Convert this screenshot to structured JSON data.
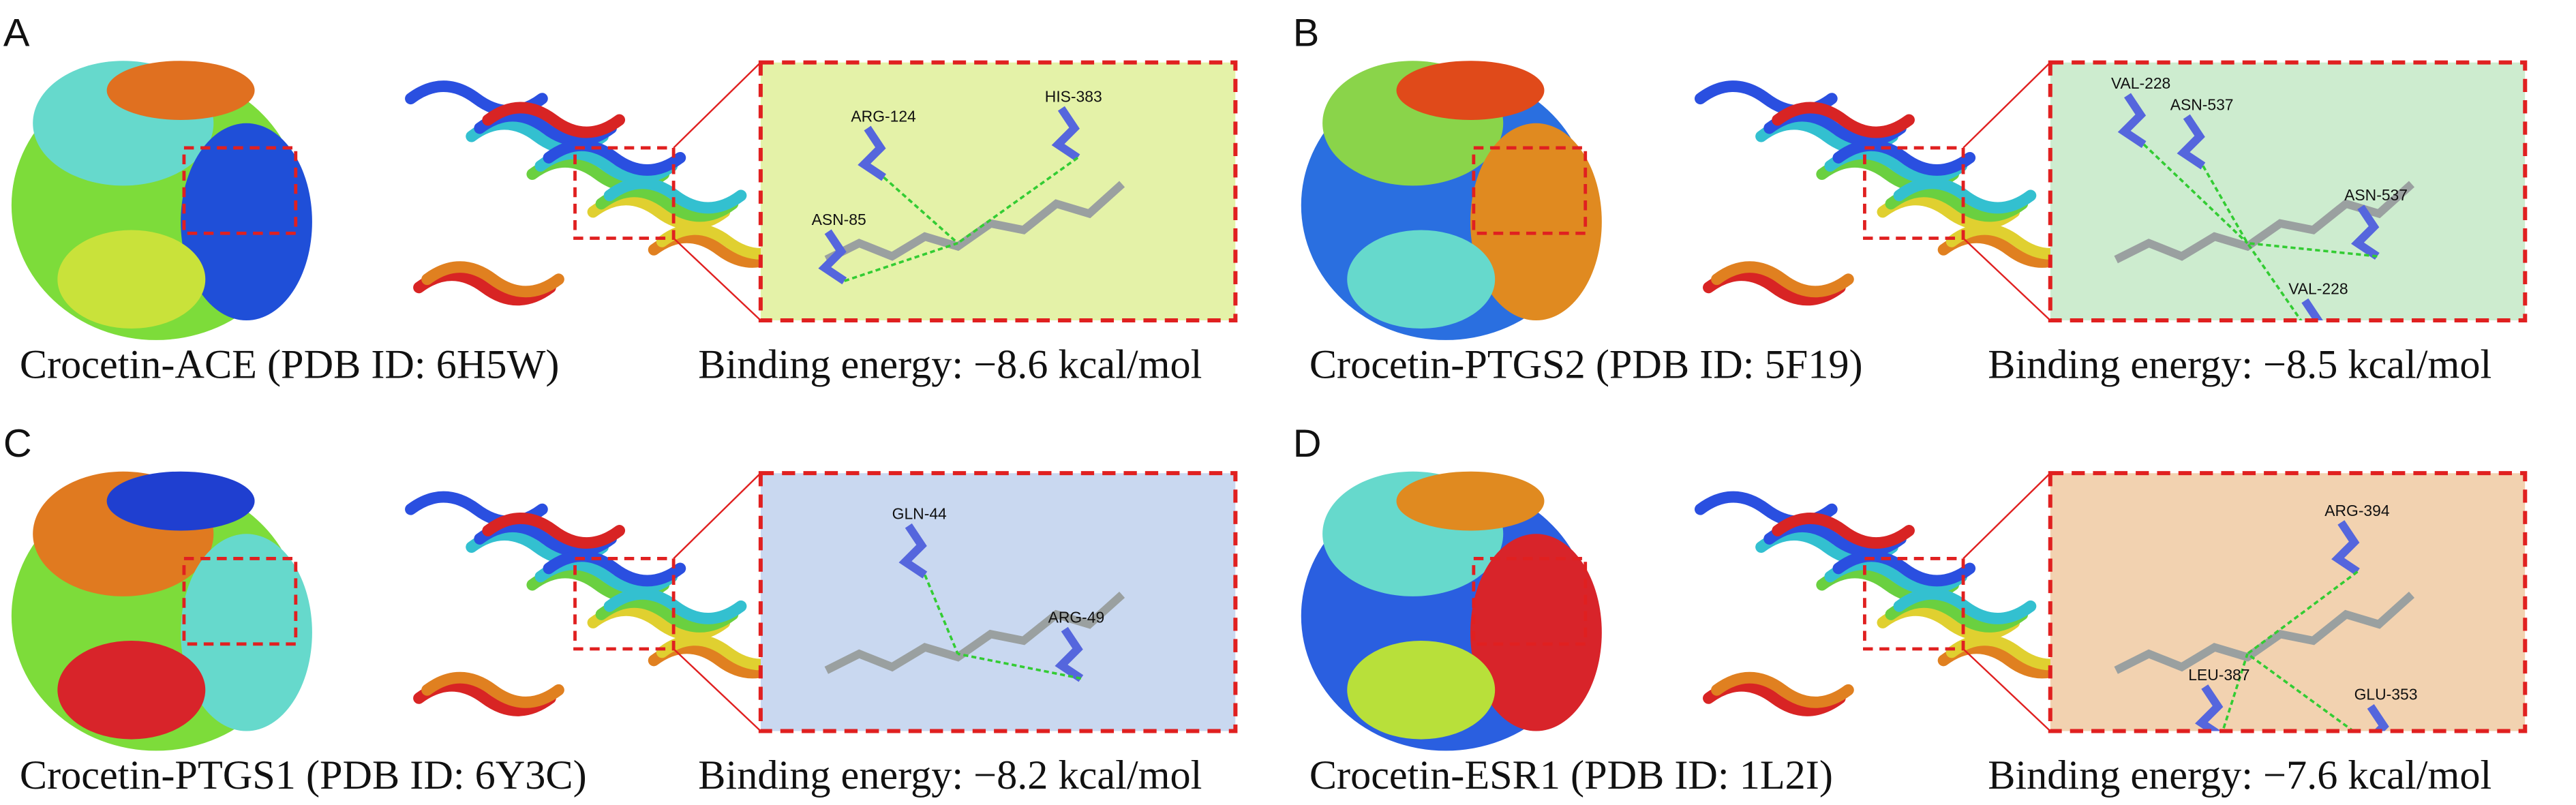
{
  "panels": [
    {
      "label": "A",
      "caption": "Crocetin-ACE (PDB ID: 6H5W)",
      "energy": "Binding energy: −8.6 kcal/mol",
      "residues": [
        "ARG-124",
        "HIS-383",
        "ASN-85"
      ]
    },
    {
      "label": "B",
      "caption": "Crocetin-PTGS2 (PDB ID: 5F19)",
      "energy": "Binding energy: −8.5 kcal/mol",
      "residues": [
        "VAL-228",
        "ASN-537",
        "ASN-537",
        "VAL-228"
      ]
    },
    {
      "label": "C",
      "caption": "Crocetin-PTGS1 (PDB ID: 6Y3C)",
      "energy": "Binding energy: −8.2 kcal/mol",
      "residues": [
        "GLN-44",
        "ARG-49"
      ]
    },
    {
      "label": "D",
      "caption": "Crocetin-ESR1 (PDB ID: 1L2I)",
      "energy": "Binding energy: −7.6 kcal/mol",
      "residues": [
        "ARG-394",
        "LEU-387",
        "GLU-353"
      ]
    }
  ]
}
